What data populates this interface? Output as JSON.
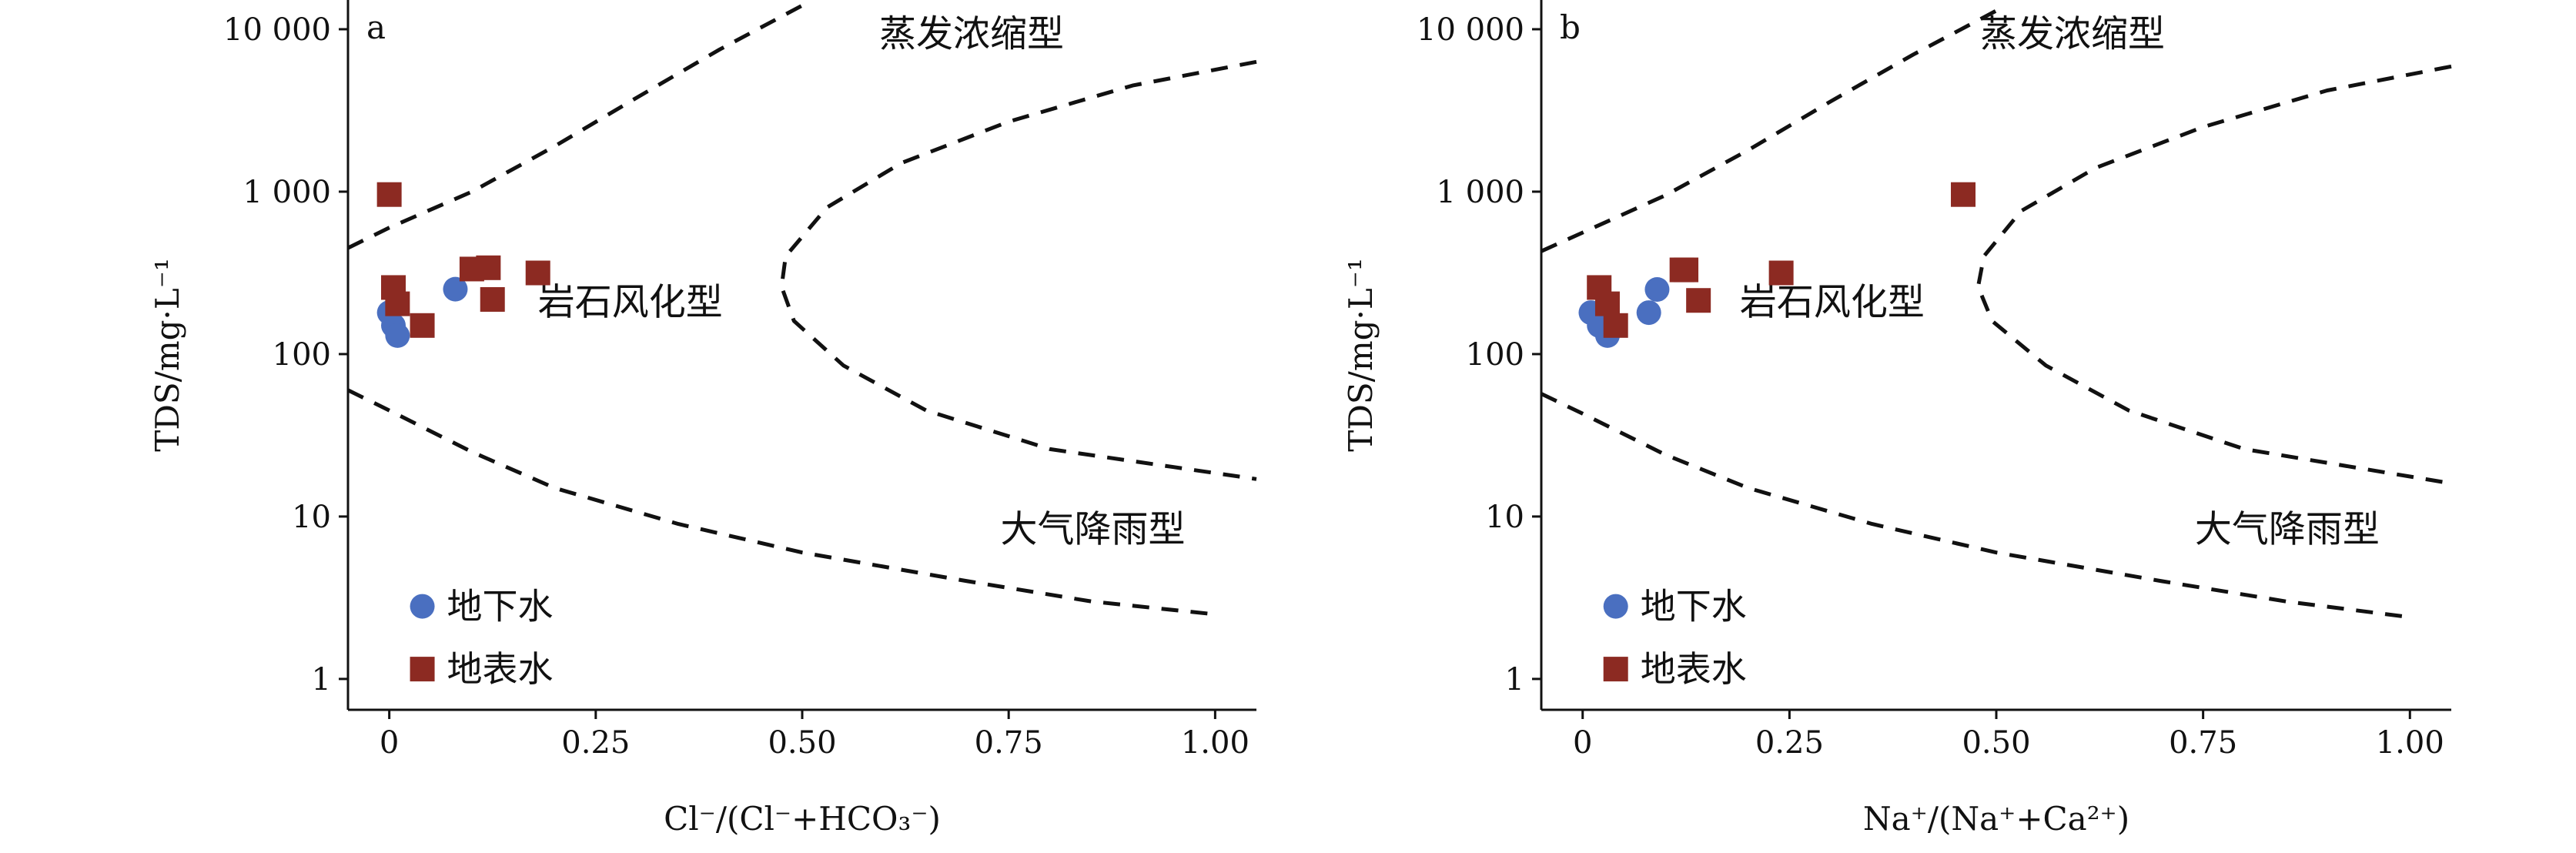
{
  "colors": {
    "groundwater": "#4a6fc0",
    "surface_water": "#8c2a22",
    "axis": "#111111"
  },
  "chart_data": [
    {
      "type": "scatter",
      "panel_label": "a",
      "xlabel": "Cl⁻/(Cl⁻+HCO₃⁻)",
      "ylabel": "TDS/mg·L⁻¹",
      "xlim": [
        -0.05,
        1.05
      ],
      "ylim_log10": [
        -0.19,
        4.18
      ],
      "yscale": "log",
      "xticks": [
        0,
        0.25,
        0.5,
        0.75,
        1.0
      ],
      "xtick_labels": [
        "0",
        "0.25",
        "0.50",
        "0.75",
        "1.00"
      ],
      "yticks": [
        1,
        10,
        100,
        1000,
        10000
      ],
      "ytick_labels": [
        "1",
        "10",
        "100",
        "1 000",
        "10 000"
      ],
      "region_labels": {
        "evaporation": "蒸发浓缩型",
        "rock": "岩石风化型",
        "precipitation": "大气降雨型"
      },
      "legend": {
        "groundwater": "地下水",
        "surface_water": "地表水"
      },
      "series": [
        {
          "name": "地下水",
          "marker": "circle",
          "points": [
            [
              0,
              180
            ],
            [
              0.005,
              150
            ],
            [
              0.01,
              130
            ],
            [
              0.08,
              251
            ]
          ]
        },
        {
          "name": "地表水",
          "marker": "square",
          "points": [
            [
              0,
              960
            ],
            [
              0.005,
              257
            ],
            [
              0.01,
              204
            ],
            [
              0.04,
              150
            ],
            [
              0.1,
              334
            ],
            [
              0.12,
              340
            ],
            [
              0.125,
              217
            ],
            [
              0.18,
              316
            ]
          ]
        }
      ],
      "boundaries": [
        [
          [
            -0.05,
            450
          ],
          [
            0,
            600
          ],
          [
            0.1,
            1000
          ],
          [
            0.2,
            1900
          ],
          [
            0.3,
            3800
          ],
          [
            0.4,
            7500
          ],
          [
            0.5,
            14000
          ]
        ],
        [
          [
            1.05,
            6300
          ],
          [
            0.9,
            4500
          ],
          [
            0.75,
            2700
          ],
          [
            0.62,
            1500
          ],
          [
            0.53,
            800
          ],
          [
            0.48,
            400
          ],
          [
            0.475,
            260
          ],
          [
            0.49,
            160
          ],
          [
            0.55,
            85
          ],
          [
            0.65,
            45
          ],
          [
            0.8,
            26
          ],
          [
            1.05,
            17
          ]
        ],
        [
          [
            -0.05,
            60
          ],
          [
            0,
            45
          ],
          [
            0.1,
            25
          ],
          [
            0.2,
            15
          ],
          [
            0.35,
            9
          ],
          [
            0.5,
            6
          ],
          [
            0.7,
            4
          ],
          [
            0.85,
            3
          ],
          [
            1.0,
            2.5
          ]
        ]
      ]
    },
    {
      "type": "scatter",
      "panel_label": "b",
      "xlabel": "Na⁺/(Na⁺+Ca²⁺)",
      "ylabel": "TDS/mg·L⁻¹",
      "xlim": [
        -0.05,
        1.05
      ],
      "ylim_log10": [
        -0.19,
        4.18
      ],
      "yscale": "log",
      "xticks": [
        0,
        0.25,
        0.5,
        0.75,
        1.0
      ],
      "xtick_labels": [
        "0",
        "0.25",
        "0.50",
        "0.75",
        "1.00"
      ],
      "yticks": [
        1,
        10,
        100,
        1000,
        10000
      ],
      "ytick_labels": [
        "1",
        "10",
        "100",
        "1 000",
        "10 000"
      ],
      "region_labels": {
        "evaporation": "蒸发浓缩型",
        "rock": "岩石风化型",
        "precipitation": "大气降雨型"
      },
      "legend": {
        "groundwater": "地下水",
        "surface_water": "地表水"
      },
      "series": [
        {
          "name": "地下水",
          "marker": "circle",
          "points": [
            [
              0.01,
              180
            ],
            [
              0.02,
              150
            ],
            [
              0.03,
              130
            ],
            [
              0.08,
              180
            ],
            [
              0.09,
              250
            ]
          ]
        },
        {
          "name": "地表水",
          "marker": "square",
          "points": [
            [
              0.02,
              257
            ],
            [
              0.03,
              204
            ],
            [
              0.04,
              150
            ],
            [
              0.12,
              330
            ],
            [
              0.125,
              330
            ],
            [
              0.14,
              214
            ],
            [
              0.24,
              316
            ],
            [
              0.46,
              960
            ]
          ]
        }
      ],
      "boundaries": [
        [
          [
            -0.05,
            430
          ],
          [
            0,
            560
          ],
          [
            0.1,
            950
          ],
          [
            0.2,
            1800
          ],
          [
            0.3,
            3600
          ],
          [
            0.4,
            7000
          ],
          [
            0.5,
            13000
          ]
        ],
        [
          [
            1.05,
            5900
          ],
          [
            0.9,
            4200
          ],
          [
            0.75,
            2500
          ],
          [
            0.62,
            1400
          ],
          [
            0.53,
            760
          ],
          [
            0.485,
            400
          ],
          [
            0.478,
            260
          ],
          [
            0.495,
            160
          ],
          [
            0.56,
            85
          ],
          [
            0.66,
            45
          ],
          [
            0.8,
            26
          ],
          [
            1.05,
            16
          ]
        ],
        [
          [
            -0.05,
            57
          ],
          [
            0,
            43
          ],
          [
            0.1,
            24
          ],
          [
            0.2,
            15
          ],
          [
            0.35,
            9
          ],
          [
            0.5,
            6
          ],
          [
            0.7,
            4
          ],
          [
            0.85,
            3
          ],
          [
            1.0,
            2.4
          ]
        ]
      ]
    }
  ]
}
